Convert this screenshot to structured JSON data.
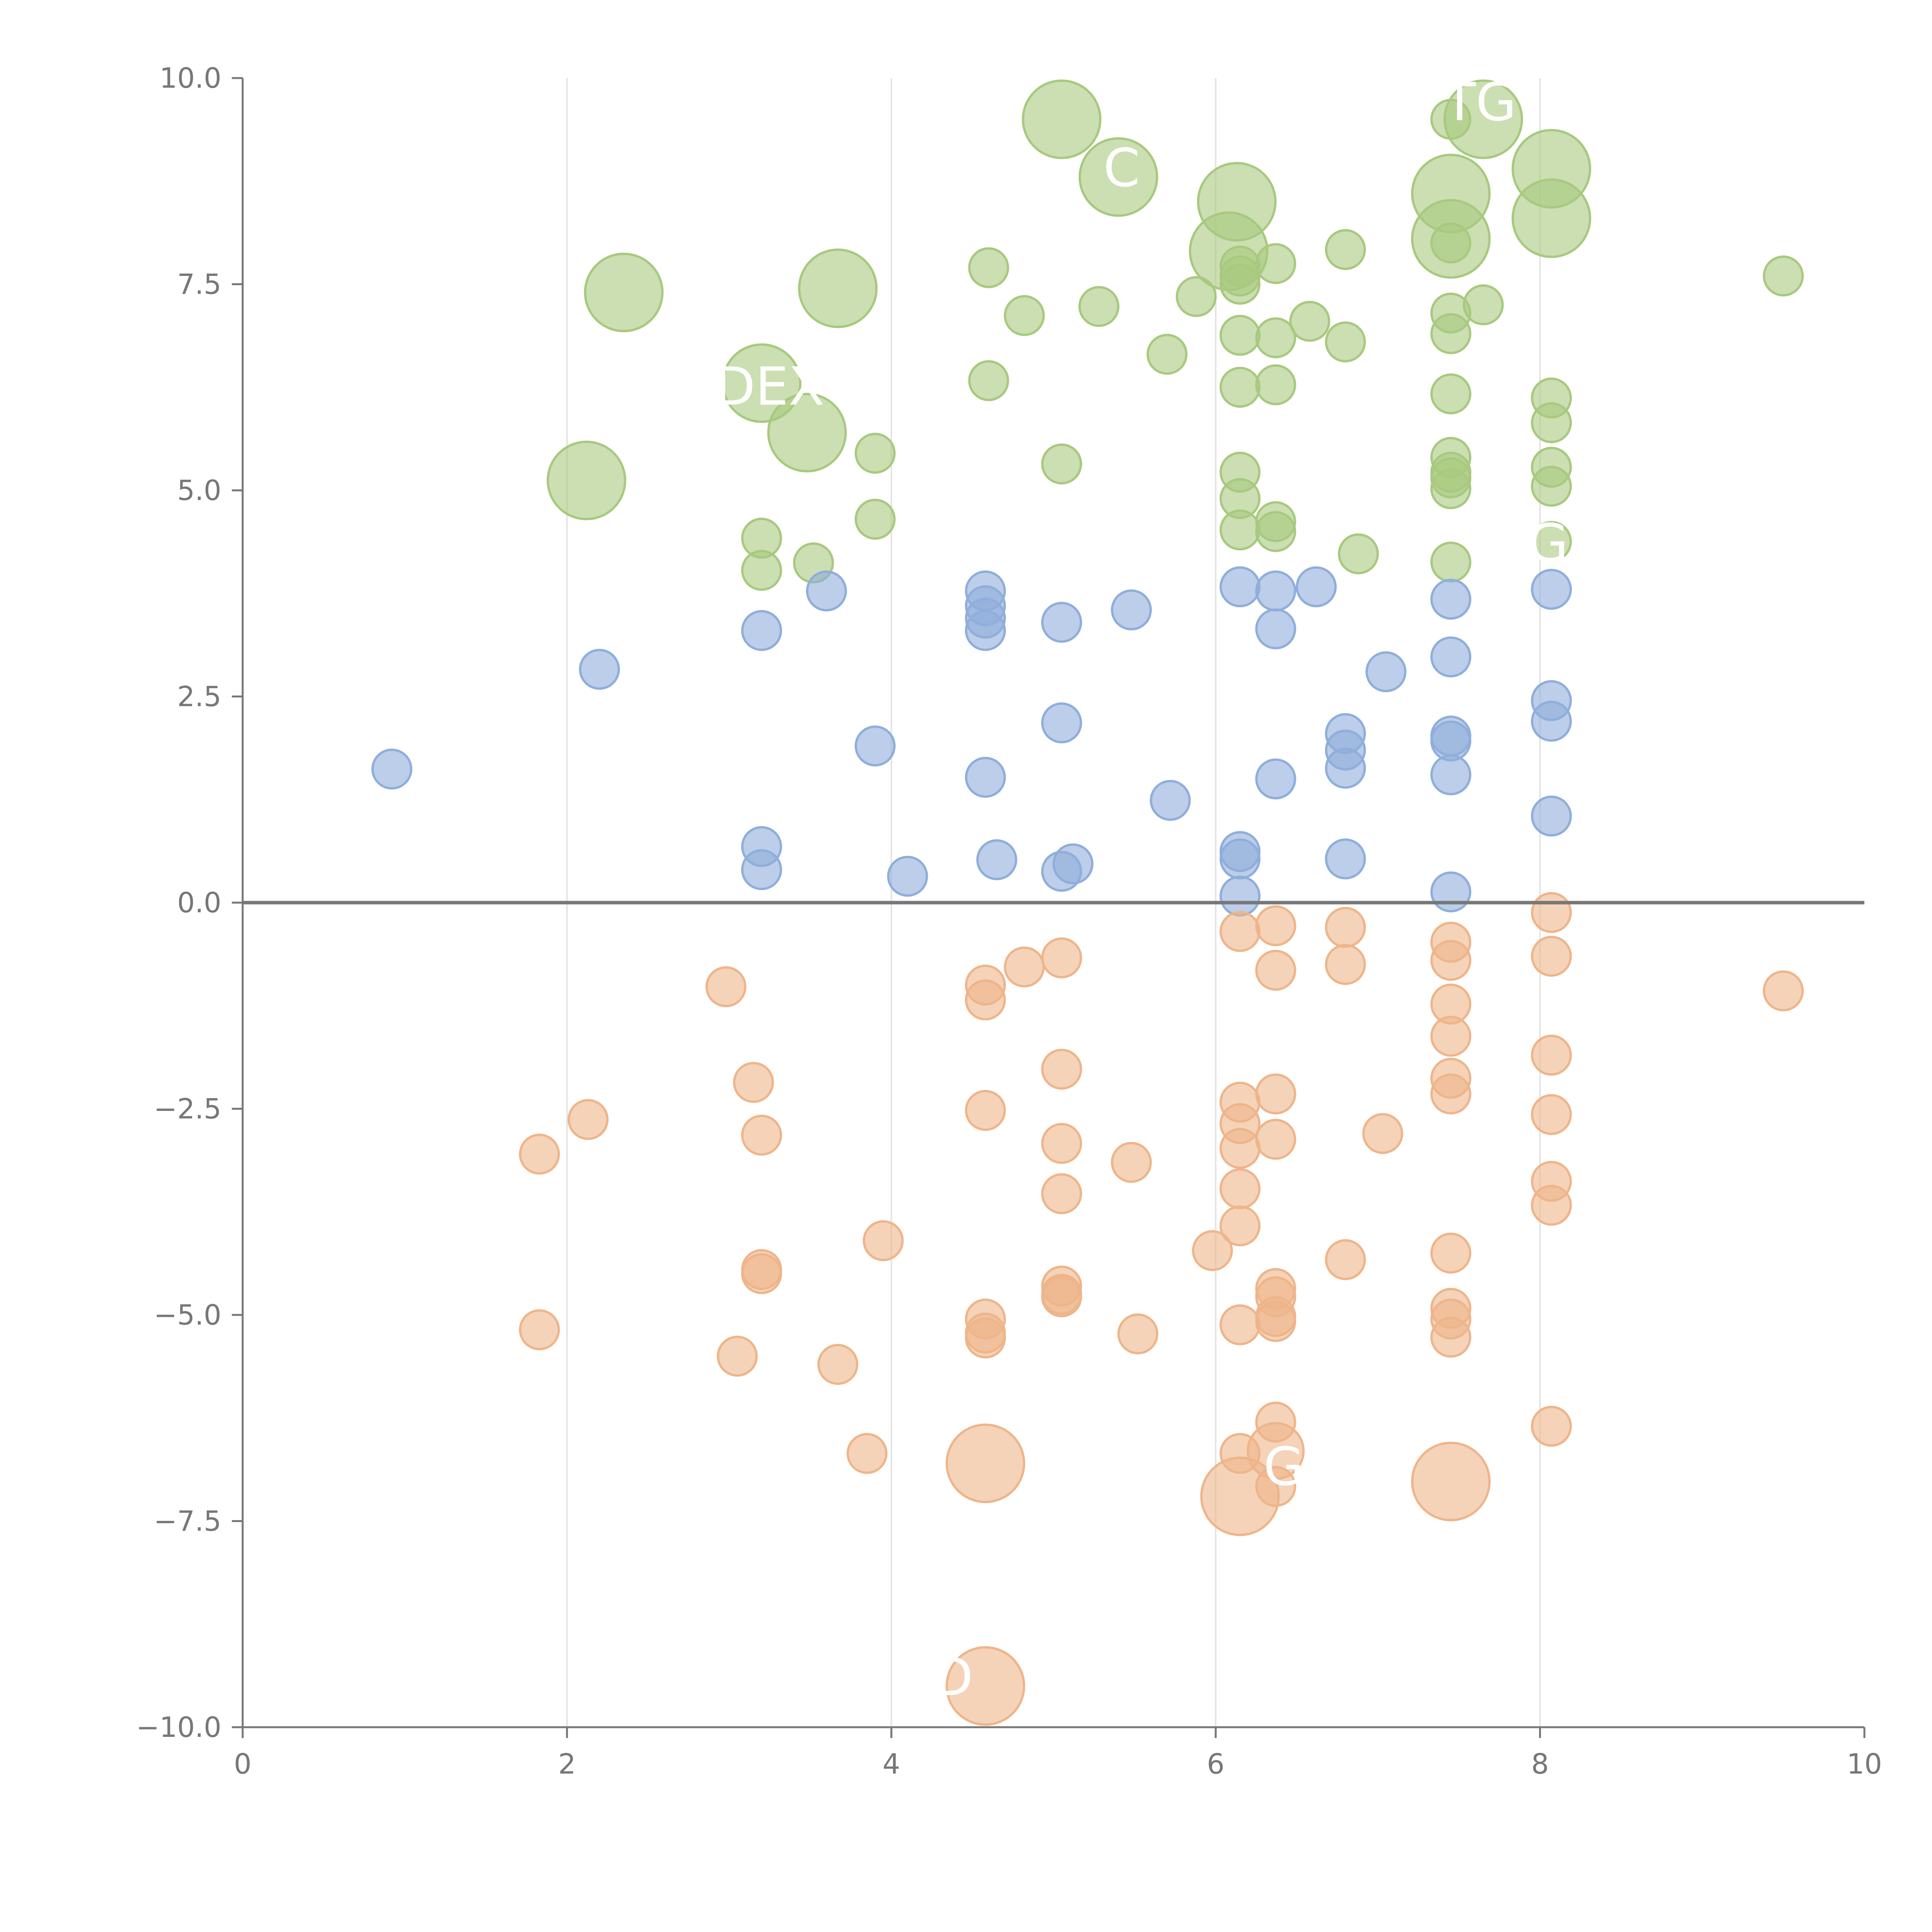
{
  "chart_data": {
    "type": "scatter",
    "subtype": "bubble",
    "title": "",
    "xlabel": "",
    "ylabel": "",
    "xlim": [
      0,
      10
    ],
    "ylim": [
      -10,
      10
    ],
    "xticks": [
      "0",
      "2",
      "4",
      "6",
      "8",
      "10"
    ],
    "xtick_values": [
      0,
      2,
      4,
      6,
      8,
      10
    ],
    "yticks": [
      "10.0",
      "7.5",
      "5.0",
      "2.5",
      "0.0",
      "−2.5",
      "−5.0",
      "−7.5",
      "−10.0"
    ],
    "ytick_values": [
      10,
      7.5,
      5,
      2.5,
      0,
      -2.5,
      -5,
      -7.5,
      -10
    ],
    "vertical_gridlines_at": [
      2,
      4,
      6,
      8
    ],
    "baseline_y": 0,
    "series": [
      {
        "name": "green",
        "color": "#a8c97f",
        "points": [
          {
            "x": 5.05,
            "y": 9.5,
            "r": 3
          },
          {
            "x": 5.4,
            "y": 8.8,
            "r": 3
          },
          {
            "x": 7.45,
            "y": 9.5,
            "r": 1
          },
          {
            "x": 7.65,
            "y": 9.5,
            "r": 3
          },
          {
            "x": 8.07,
            "y": 8.9,
            "r": 3
          },
          {
            "x": 8.07,
            "y": 8.3,
            "r": 3
          },
          {
            "x": 6.13,
            "y": 8.5,
            "r": 3
          },
          {
            "x": 6.08,
            "y": 7.9,
            "r": 3
          },
          {
            "x": 7.45,
            "y": 8.6,
            "r": 3
          },
          {
            "x": 7.45,
            "y": 8.05,
            "r": 3
          },
          {
            "x": 7.45,
            "y": 8.0,
            "r": 1
          },
          {
            "x": 2.35,
            "y": 7.4,
            "r": 3
          },
          {
            "x": 3.67,
            "y": 7.45,
            "r": 3
          },
          {
            "x": 4.6,
            "y": 7.7,
            "r": 1
          },
          {
            "x": 4.82,
            "y": 7.12,
            "r": 1
          },
          {
            "x": 5.28,
            "y": 7.23,
            "r": 1
          },
          {
            "x": 5.88,
            "y": 7.35,
            "r": 1
          },
          {
            "x": 6.15,
            "y": 7.72,
            "r": 1
          },
          {
            "x": 6.15,
            "y": 7.6,
            "r": 1
          },
          {
            "x": 6.15,
            "y": 7.5,
            "r": 1
          },
          {
            "x": 6.37,
            "y": 7.75,
            "r": 1
          },
          {
            "x": 6.8,
            "y": 7.92,
            "r": 1
          },
          {
            "x": 9.5,
            "y": 7.6,
            "r": 1
          },
          {
            "x": 7.45,
            "y": 7.15,
            "r": 1
          },
          {
            "x": 7.65,
            "y": 7.25,
            "r": 1
          },
          {
            "x": 6.58,
            "y": 7.05,
            "r": 1
          },
          {
            "x": 6.15,
            "y": 6.88,
            "r": 1
          },
          {
            "x": 6.37,
            "y": 6.85,
            "r": 1
          },
          {
            "x": 6.8,
            "y": 6.8,
            "r": 1
          },
          {
            "x": 7.45,
            "y": 6.9,
            "r": 1
          },
          {
            "x": 5.7,
            "y": 6.65,
            "r": 1
          },
          {
            "x": 3.2,
            "y": 6.3,
            "r": 3
          },
          {
            "x": 4.6,
            "y": 6.33,
            "r": 1
          },
          {
            "x": 6.15,
            "y": 6.25,
            "r": 1
          },
          {
            "x": 6.37,
            "y": 6.28,
            "r": 1
          },
          {
            "x": 7.45,
            "y": 6.17,
            "r": 1
          },
          {
            "x": 8.07,
            "y": 6.12,
            "r": 1
          },
          {
            "x": 8.07,
            "y": 5.82,
            "r": 1
          },
          {
            "x": 3.48,
            "y": 5.7,
            "r": 3
          },
          {
            "x": 3.9,
            "y": 5.45,
            "r": 1
          },
          {
            "x": 5.05,
            "y": 5.32,
            "r": 1
          },
          {
            "x": 2.12,
            "y": 5.12,
            "r": 3
          },
          {
            "x": 7.45,
            "y": 5.4,
            "r": 1
          },
          {
            "x": 7.45,
            "y": 5.22,
            "r": 1
          },
          {
            "x": 7.45,
            "y": 5.15,
            "r": 1
          },
          {
            "x": 7.45,
            "y": 5.02,
            "r": 1
          },
          {
            "x": 8.07,
            "y": 5.28,
            "r": 1
          },
          {
            "x": 8.07,
            "y": 5.05,
            "r": 1
          },
          {
            "x": 6.15,
            "y": 5.22,
            "r": 1
          },
          {
            "x": 6.15,
            "y": 4.9,
            "r": 1
          },
          {
            "x": 6.15,
            "y": 4.52,
            "r": 1
          },
          {
            "x": 6.37,
            "y": 4.62,
            "r": 1
          },
          {
            "x": 6.37,
            "y": 4.5,
            "r": 1
          },
          {
            "x": 3.9,
            "y": 4.65,
            "r": 1
          },
          {
            "x": 3.2,
            "y": 4.42,
            "r": 1
          },
          {
            "x": 3.2,
            "y": 4.03,
            "r": 1
          },
          {
            "x": 3.52,
            "y": 4.12,
            "r": 1
          },
          {
            "x": 6.88,
            "y": 4.23,
            "r": 1
          },
          {
            "x": 7.45,
            "y": 4.13,
            "r": 1
          },
          {
            "x": 8.07,
            "y": 4.38,
            "r": 1
          }
        ]
      },
      {
        "name": "blue",
        "color": "#8faedb",
        "points": [
          {
            "x": 0.92,
            "y": 1.62,
            "r": 1
          },
          {
            "x": 2.2,
            "y": 2.83,
            "r": 1
          },
          {
            "x": 3.2,
            "y": 3.3,
            "r": 1
          },
          {
            "x": 3.6,
            "y": 3.78,
            "r": 1
          },
          {
            "x": 3.9,
            "y": 1.9,
            "r": 1
          },
          {
            "x": 4.58,
            "y": 3.78,
            "r": 1
          },
          {
            "x": 4.58,
            "y": 3.6,
            "r": 1
          },
          {
            "x": 4.58,
            "y": 3.45,
            "r": 1
          },
          {
            "x": 4.58,
            "y": 3.3,
            "r": 1
          },
          {
            "x": 5.05,
            "y": 3.4,
            "r": 1
          },
          {
            "x": 5.48,
            "y": 3.55,
            "r": 1
          },
          {
            "x": 5.05,
            "y": 2.18,
            "r": 1
          },
          {
            "x": 4.58,
            "y": 1.52,
            "r": 1
          },
          {
            "x": 5.72,
            "y": 1.24,
            "r": 1
          },
          {
            "x": 6.15,
            "y": 3.83,
            "r": 1
          },
          {
            "x": 6.37,
            "y": 3.78,
            "r": 1
          },
          {
            "x": 6.37,
            "y": 3.32,
            "r": 1
          },
          {
            "x": 6.62,
            "y": 3.83,
            "r": 1
          },
          {
            "x": 7.05,
            "y": 2.8,
            "r": 1
          },
          {
            "x": 7.45,
            "y": 3.68,
            "r": 1
          },
          {
            "x": 7.45,
            "y": 2.98,
            "r": 1
          },
          {
            "x": 7.45,
            "y": 2.02,
            "r": 1
          },
          {
            "x": 7.45,
            "y": 1.96,
            "r": 1
          },
          {
            "x": 7.45,
            "y": 1.55,
            "r": 1
          },
          {
            "x": 8.07,
            "y": 3.8,
            "r": 1
          },
          {
            "x": 8.07,
            "y": 2.45,
            "r": 1
          },
          {
            "x": 8.07,
            "y": 2.2,
            "r": 1
          },
          {
            "x": 8.07,
            "y": 1.05,
            "r": 1
          },
          {
            "x": 6.8,
            "y": 2.05,
            "r": 1
          },
          {
            "x": 6.8,
            "y": 1.85,
            "r": 1
          },
          {
            "x": 6.8,
            "y": 1.63,
            "r": 1
          },
          {
            "x": 6.37,
            "y": 1.5,
            "r": 1
          },
          {
            "x": 3.2,
            "y": 0.68,
            "r": 1
          },
          {
            "x": 3.2,
            "y": 0.4,
            "r": 1
          },
          {
            "x": 4.1,
            "y": 0.32,
            "r": 1
          },
          {
            "x": 4.65,
            "y": 0.52,
            "r": 1
          },
          {
            "x": 5.05,
            "y": 0.38,
            "r": 1
          },
          {
            "x": 5.12,
            "y": 0.47,
            "r": 1
          },
          {
            "x": 6.15,
            "y": 0.62,
            "r": 1
          },
          {
            "x": 6.15,
            "y": 0.53,
            "r": 1
          },
          {
            "x": 6.15,
            "y": 0.08,
            "r": 1
          },
          {
            "x": 6.8,
            "y": 0.53,
            "r": 1
          },
          {
            "x": 7.45,
            "y": 0.13,
            "r": 1
          }
        ]
      },
      {
        "name": "orange",
        "color": "#eeb58a",
        "points": [
          {
            "x": 2.98,
            "y": -1.02,
            "r": 1
          },
          {
            "x": 3.15,
            "y": -2.18,
            "r": 1
          },
          {
            "x": 3.2,
            "y": -2.82,
            "r": 1
          },
          {
            "x": 2.13,
            "y": -2.63,
            "r": 1
          },
          {
            "x": 1.83,
            "y": -3.05,
            "r": 1
          },
          {
            "x": 1.83,
            "y": -5.18,
            "r": 1
          },
          {
            "x": 3.2,
            "y": -4.45,
            "r": 1
          },
          {
            "x": 3.2,
            "y": -4.5,
            "r": 1
          },
          {
            "x": 3.05,
            "y": -5.5,
            "r": 1
          },
          {
            "x": 3.67,
            "y": -5.6,
            "r": 1
          },
          {
            "x": 3.95,
            "y": -4.1,
            "r": 1
          },
          {
            "x": 3.85,
            "y": -6.68,
            "r": 1
          },
          {
            "x": 4.58,
            "y": -1.0,
            "r": 1
          },
          {
            "x": 4.58,
            "y": -1.18,
            "r": 1
          },
          {
            "x": 4.82,
            "y": -0.78,
            "r": 1
          },
          {
            "x": 5.05,
            "y": -0.67,
            "r": 1
          },
          {
            "x": 5.05,
            "y": -2.02,
            "r": 1
          },
          {
            "x": 4.58,
            "y": -2.52,
            "r": 1
          },
          {
            "x": 5.05,
            "y": -2.92,
            "r": 1
          },
          {
            "x": 5.05,
            "y": -3.53,
            "r": 1
          },
          {
            "x": 5.48,
            "y": -3.15,
            "r": 1
          },
          {
            "x": 4.58,
            "y": -5.05,
            "r": 1
          },
          {
            "x": 4.58,
            "y": -5.22,
            "r": 1
          },
          {
            "x": 4.58,
            "y": -5.28,
            "r": 1
          },
          {
            "x": 5.05,
            "y": -4.65,
            "r": 1
          },
          {
            "x": 5.05,
            "y": -4.75,
            "r": 1
          },
          {
            "x": 5.05,
            "y": -4.78,
            "r": 1
          },
          {
            "x": 5.52,
            "y": -5.23,
            "r": 1
          },
          {
            "x": 4.58,
            "y": -6.8,
            "r": 3
          },
          {
            "x": 4.58,
            "y": -9.5,
            "r": 3
          },
          {
            "x": 5.98,
            "y": -4.22,
            "r": 1
          },
          {
            "x": 6.15,
            "y": -0.35,
            "r": 1
          },
          {
            "x": 6.37,
            "y": -0.28,
            "r": 1
          },
          {
            "x": 6.37,
            "y": -0.82,
            "r": 1
          },
          {
            "x": 6.8,
            "y": -0.3,
            "r": 1
          },
          {
            "x": 6.8,
            "y": -0.75,
            "r": 1
          },
          {
            "x": 6.15,
            "y": -2.42,
            "r": 1
          },
          {
            "x": 6.15,
            "y": -2.68,
            "r": 1
          },
          {
            "x": 6.15,
            "y": -2.98,
            "r": 1
          },
          {
            "x": 6.15,
            "y": -3.47,
            "r": 1
          },
          {
            "x": 6.15,
            "y": -3.92,
            "r": 1
          },
          {
            "x": 6.37,
            "y": -2.32,
            "r": 1
          },
          {
            "x": 6.37,
            "y": -2.87,
            "r": 1
          },
          {
            "x": 7.03,
            "y": -2.8,
            "r": 1
          },
          {
            "x": 6.15,
            "y": -5.12,
            "r": 1
          },
          {
            "x": 6.37,
            "y": -4.68,
            "r": 1
          },
          {
            "x": 6.37,
            "y": -4.78,
            "r": 1
          },
          {
            "x": 6.37,
            "y": -5.02,
            "r": 1
          },
          {
            "x": 6.37,
            "y": -5.08,
            "r": 1
          },
          {
            "x": 6.8,
            "y": -4.33,
            "r": 1
          },
          {
            "x": 6.15,
            "y": -6.68,
            "r": 1
          },
          {
            "x": 6.37,
            "y": -6.3,
            "r": 1
          },
          {
            "x": 6.37,
            "y": -6.65,
            "r": 2
          },
          {
            "x": 6.37,
            "y": -7.08,
            "r": 1
          },
          {
            "x": 6.15,
            "y": -7.2,
            "r": 3
          },
          {
            "x": 7.45,
            "y": -0.48,
            "r": 1
          },
          {
            "x": 7.45,
            "y": -0.7,
            "r": 1
          },
          {
            "x": 7.45,
            "y": -1.23,
            "r": 1
          },
          {
            "x": 7.45,
            "y": -1.62,
            "r": 1
          },
          {
            "x": 7.45,
            "y": -2.13,
            "r": 1
          },
          {
            "x": 7.45,
            "y": -2.32,
            "r": 1
          },
          {
            "x": 7.45,
            "y": -4.25,
            "r": 1
          },
          {
            "x": 7.45,
            "y": -4.92,
            "r": 1
          },
          {
            "x": 7.45,
            "y": -5.05,
            "r": 1
          },
          {
            "x": 7.45,
            "y": -5.27,
            "r": 1
          },
          {
            "x": 7.45,
            "y": -7.02,
            "r": 3
          },
          {
            "x": 8.07,
            "y": -0.12,
            "r": 1
          },
          {
            "x": 8.07,
            "y": -0.65,
            "r": 1
          },
          {
            "x": 8.07,
            "y": -1.85,
            "r": 1
          },
          {
            "x": 8.07,
            "y": -2.57,
            "r": 1
          },
          {
            "x": 8.07,
            "y": -3.38,
            "r": 1
          },
          {
            "x": 8.07,
            "y": -3.67,
            "r": 1
          },
          {
            "x": 8.07,
            "y": -6.35,
            "r": 1
          },
          {
            "x": 9.5,
            "y": -1.07,
            "r": 1
          }
        ]
      }
    ],
    "annotations": [
      {
        "text": "DEX",
        "x": 3.25,
        "y": 6.25
      },
      {
        "text": "TG",
        "x": 7.63,
        "y": 9.7
      },
      {
        "text": "C",
        "x": 5.42,
        "y": 8.9
      },
      {
        "text": "G",
        "x": 8.05,
        "y": 4.35
      },
      {
        "text": "G",
        "x": 6.42,
        "y": -6.85
      },
      {
        "text": "D",
        "x": 4.38,
        "y": -9.4
      }
    ]
  }
}
